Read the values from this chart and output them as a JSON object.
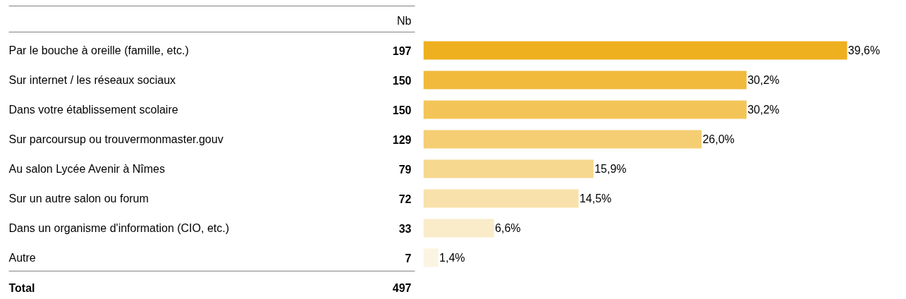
{
  "chart_data": {
    "type": "bar",
    "orientation": "horizontal",
    "categories": [
      "Par le bouche à oreille (famille, etc.)",
      "Sur internet / les réseaux sociaux",
      "Dans votre établissement scolaire",
      "Sur parcoursup ou trouvermonmaster.gouv",
      "Au salon Lycée Avenir à Nîmes",
      "Sur un autre salon ou forum",
      "Dans un organisme d'information (CIO, etc.)",
      "Autre"
    ],
    "values": [
      39.6,
      30.2,
      30.2,
      26.0,
      15.9,
      14.5,
      6.6,
      1.4
    ],
    "value_labels": [
      "39,6%",
      "30,2%",
      "30,2%",
      "26,0%",
      "15,9%",
      "14,5%",
      "6,6%",
      "1,4%"
    ],
    "colors": [
      "#efb020",
      "#f1ba3c",
      "#f3c457",
      "#f5cd72",
      "#f7d88f",
      "#f8e1aa",
      "#faebc9",
      "#fcf4e2"
    ],
    "annotations": [
      "Nb",
      "197",
      "150",
      "150",
      "129",
      "79",
      "72",
      "33",
      "7",
      "Total",
      "497"
    ],
    "grid": false
  }
}
